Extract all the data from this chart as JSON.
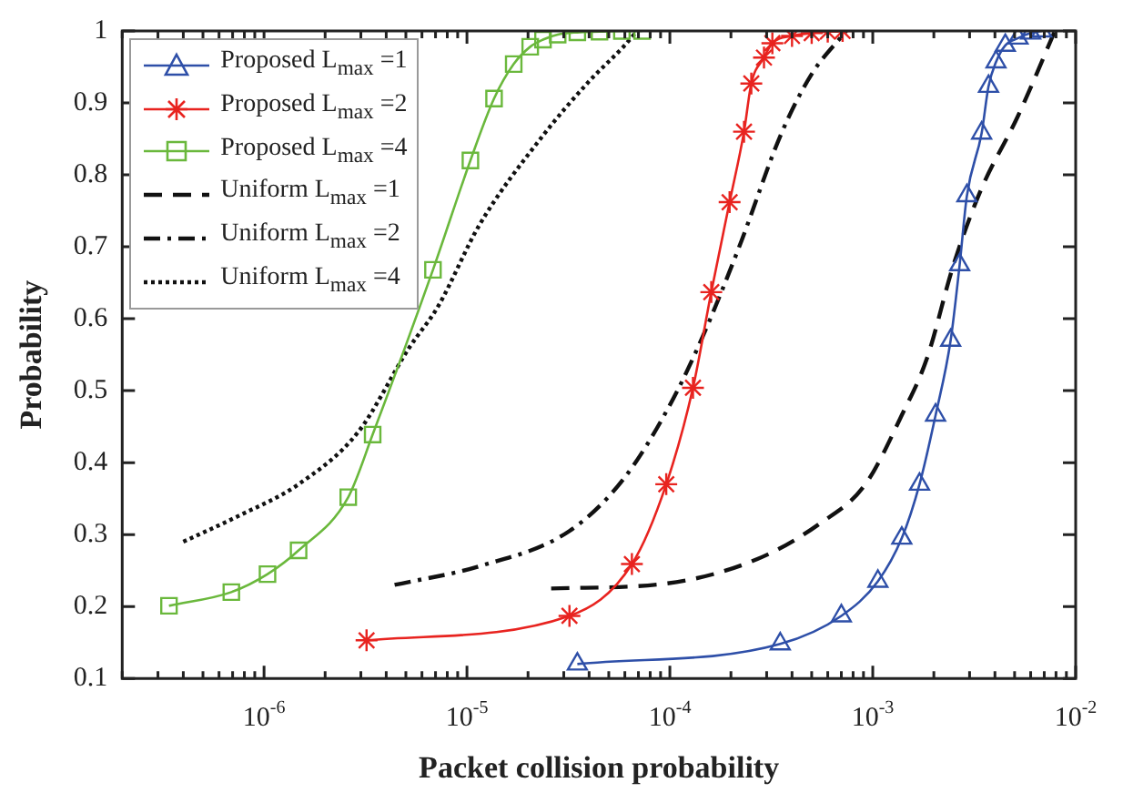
{
  "chart_data": {
    "type": "line",
    "xlabel": "Packet collision probability",
    "ylabel": "Probability",
    "log": "x",
    "grid": false,
    "legend": "top left",
    "xlim": [
      2e-07,
      0.01
    ],
    "ylim": [
      0.1,
      1
    ],
    "xticks": [
      {
        "value": 2e-07,
        "label": null
      },
      {
        "value": 3e-07,
        "label": null
      },
      {
        "value": 4e-07,
        "label": null
      },
      {
        "value": 5e-07,
        "label": null
      },
      {
        "value": 6e-07,
        "label": null
      },
      {
        "value": 7e-07,
        "label": null
      },
      {
        "value": 8e-07,
        "label": null
      },
      {
        "value": 9e-07,
        "label": null
      },
      {
        "value": 1e-06,
        "label": "10$^{-6}$"
      },
      {
        "value": 2e-06,
        "label": null
      },
      {
        "value": 3e-06,
        "label": null
      },
      {
        "value": 4e-06,
        "label": null
      },
      {
        "value": 5e-06,
        "label": null
      },
      {
        "value": 6e-06,
        "label": null
      },
      {
        "value": 7e-06,
        "label": null
      },
      {
        "value": 8e-06,
        "label": null
      },
      {
        "value": 9e-06,
        "label": null
      },
      {
        "value": 1e-05,
        "label": "10$^{-5}$"
      },
      {
        "value": 2e-05,
        "label": null
      },
      {
        "value": 3e-05,
        "label": null
      },
      {
        "value": 4e-05,
        "label": null
      },
      {
        "value": 5e-05,
        "label": null
      },
      {
        "value": 6e-05,
        "label": null
      },
      {
        "value": 7e-05,
        "label": null
      },
      {
        "value": 8e-05,
        "label": null
      },
      {
        "value": 9e-05,
        "label": null
      },
      {
        "value": 0.0001,
        "label": "10$^{-4}$"
      },
      {
        "value": 0.0002,
        "label": null
      },
      {
        "value": 0.0003,
        "label": null
      },
      {
        "value": 0.0004,
        "label": null
      },
      {
        "value": 0.0005,
        "label": null
      },
      {
        "value": 0.0006,
        "label": null
      },
      {
        "value": 0.0007,
        "label": null
      },
      {
        "value": 0.0008,
        "label": null
      },
      {
        "value": 0.0009,
        "label": null
      },
      {
        "value": 0.001,
        "label": "10$^{-3}$"
      },
      {
        "value": 0.002,
        "label": null
      },
      {
        "value": 0.003,
        "label": null
      },
      {
        "value": 0.004,
        "label": null
      },
      {
        "value": 0.005,
        "label": null
      },
      {
        "value": 0.006,
        "label": null
      },
      {
        "value": 0.007,
        "label": null
      },
      {
        "value": 0.008,
        "label": null
      },
      {
        "value": 0.009,
        "label": null
      },
      {
        "value": 0.01,
        "label": "10$^{-2}$"
      }
    ],
    "yticks": [
      0.1,
      0.2,
      0.3,
      0.4,
      0.5,
      0.6,
      0.7,
      0.8,
      0.9,
      1
    ],
    "series": [
      {
        "name": "Proposed L$_{max}$ =1",
        "color": "#2e4fa8",
        "marker": "triangle",
        "line_style": "solid",
        "x": [
          3.5e-05,
          0.00035,
          0.0007,
          0.00106,
          0.00139,
          0.0017,
          0.00204,
          0.00242,
          0.00268,
          0.00291,
          0.00344,
          0.00372,
          0.00405,
          0.0045,
          0.0052,
          0.006,
          0.0068
        ],
        "values": [
          0.12,
          0.148,
          0.187,
          0.235,
          0.295,
          0.37,
          0.466,
          0.57,
          0.675,
          0.771,
          0.858,
          0.923,
          0.957,
          0.98,
          0.99,
          0.997,
          1
        ]
      },
      {
        "name": "Proposed L$_{max}$ =2",
        "color": "#e8231f",
        "marker": "cross",
        "line_style": "solid",
        "x": [
          3.2e-06,
          3.2e-05,
          6.5e-05,
          9.6e-05,
          0.00013,
          0.00016,
          0.000197,
          0.000232,
          0.000252,
          0.000291,
          0.00032,
          0.0004,
          0.0005,
          0.0006,
          0.00071
        ],
        "values": [
          0.153,
          0.187,
          0.259,
          0.37,
          0.504,
          0.637,
          0.762,
          0.86,
          0.927,
          0.963,
          0.983,
          0.993,
          0.997,
          0.999,
          1
        ]
      },
      {
        "name": "Proposed L$_{max}$ =4",
        "color": "#6ab83c",
        "marker": "square",
        "line_style": "solid",
        "x": [
          3.4e-07,
          6.9e-07,
          1.04e-06,
          1.48e-06,
          2.6e-06,
          3.43e-06,
          6.8e-06,
          1.04e-05,
          1.36e-05,
          1.7e-05,
          2.05e-05,
          2.37e-05,
          2.8e-05,
          3.5e-05,
          4.5e-05,
          5.8e-05,
          7.3e-05
        ],
        "values": [
          0.201,
          0.22,
          0.245,
          0.278,
          0.352,
          0.439,
          0.668,
          0.82,
          0.906,
          0.954,
          0.978,
          0.988,
          0.995,
          0.998,
          0.999,
          1,
          1
        ]
      },
      {
        "name": "Uniform L$_{max}$ =1",
        "color": "#111111",
        "marker": "none",
        "line_style": "dashed",
        "x": [
          2.6e-05,
          9.6e-05,
          0.00027,
          0.00054,
          0.00092,
          0.00139,
          0.00185,
          0.0025,
          0.0034,
          0.0052,
          0.0079
        ],
        "values": [
          0.225,
          0.232,
          0.266,
          0.314,
          0.37,
          0.466,
          0.545,
          0.675,
          0.778,
          0.882,
          1
        ]
      },
      {
        "name": "Uniform L$_{max}$ =2",
        "color": "#111111",
        "marker": "none",
        "line_style": "dashdot",
        "x": [
          4.4e-06,
          1.15e-05,
          3.2e-05,
          5.9e-05,
          0.0001,
          0.000145,
          0.000219,
          0.000355,
          0.0005,
          0.00074
        ],
        "values": [
          0.23,
          0.256,
          0.305,
          0.377,
          0.48,
          0.575,
          0.699,
          0.858,
          0.94,
          1
        ]
      },
      {
        "name": "Uniform L$_{max}$ =4",
        "color": "#111111",
        "marker": "none",
        "line_style": "dotted",
        "x": [
          4e-07,
          7.5e-07,
          1.48e-06,
          2.9e-06,
          5.2e-06,
          7.2e-06,
          1.15e-05,
          2.3e-05,
          4e-05,
          5.9e-05,
          6.9e-05
        ],
        "values": [
          0.29,
          0.326,
          0.37,
          0.442,
          0.56,
          0.617,
          0.73,
          0.85,
          0.93,
          0.978,
          1
        ]
      }
    ]
  }
}
